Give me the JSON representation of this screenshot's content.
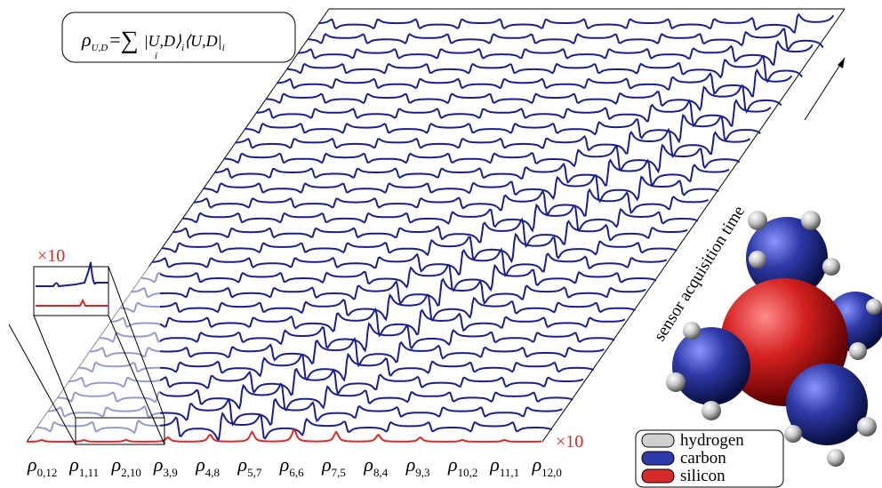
{
  "formula": {
    "lhs": "ρ",
    "lhs_sub": "U,D",
    "eq": "=",
    "sum": "∑",
    "sum_sub": "i",
    "ket": "|U,D⟩",
    "ket_sub": "i",
    "bra": "⟨U,D|",
    "bra_sub": "i"
  },
  "magnification_inset": "×10",
  "magnification_trace": "×10",
  "axis_label": "sensor acquisition time",
  "x_labels": [
    {
      "base": "ρ",
      "sub": "0,12"
    },
    {
      "base": "ρ",
      "sub": "1,11"
    },
    {
      "base": "ρ",
      "sub": "2,10"
    },
    {
      "base": "ρ",
      "sub": "3,9"
    },
    {
      "base": "ρ",
      "sub": "4,8"
    },
    {
      "base": "ρ",
      "sub": "5,7"
    },
    {
      "base": "ρ",
      "sub": "6,6"
    },
    {
      "base": "ρ",
      "sub": "7,5"
    },
    {
      "base": "ρ",
      "sub": "8,4"
    },
    {
      "base": "ρ",
      "sub": "9,3"
    },
    {
      "base": "ρ",
      "sub": "10,2"
    },
    {
      "base": "ρ",
      "sub": "11,1"
    },
    {
      "base": "ρ",
      "sub": "12,0"
    }
  ],
  "legend": [
    {
      "label": "hydrogen",
      "color": "#d0d0d0"
    },
    {
      "label": "carbon",
      "color": "#2e3aa8"
    },
    {
      "label": "silicon",
      "color": "#d42a2a"
    }
  ]
}
